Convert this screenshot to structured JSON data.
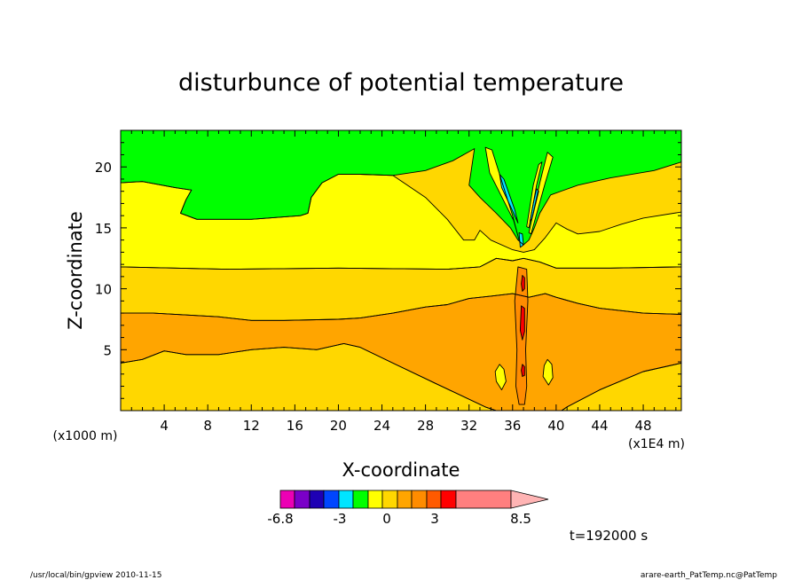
{
  "footer": {
    "left": "/usr/local/bin/gpview   2010-11-15",
    "right": "arare-earth_PatTemp.nc@PatTemp"
  },
  "time_label": "t=192000 s",
  "palette": {
    "green": "#00ff00",
    "yellow": "#ffff00",
    "gold": "#ffd700",
    "orange": "#ffa500",
    "dark_orange": "#ff8c00",
    "red": "#ff0000",
    "salmon": "#ff7f7f",
    "cyan": "#00e5ff",
    "blue": "#0000ff"
  },
  "chart_data": {
    "type": "contour",
    "title": "disturbunce of potential temperature",
    "xlabel": "X-coordinate",
    "ylabel": "Z-coordinate",
    "x_unit_label": "(x1E4 m)",
    "y_unit_label": "(x1000 m)",
    "xlim": [
      0,
      51.5
    ],
    "ylim": [
      0,
      23
    ],
    "x_ticks": [
      4,
      8,
      12,
      16,
      20,
      24,
      28,
      32,
      36,
      40,
      44,
      48
    ],
    "y_ticks": [
      5,
      10,
      15,
      20
    ],
    "bands": [
      {
        "level": "0 to 1",
        "color": "#00ff00",
        "points": [
          [
            0,
            23
          ],
          [
            51.5,
            23
          ],
          [
            51.5,
            20.4
          ],
          [
            49,
            19.7
          ],
          [
            45,
            19.1
          ],
          [
            42,
            18.5
          ],
          [
            39.5,
            17.7
          ],
          [
            38.5,
            16.2
          ],
          [
            38,
            15
          ],
          [
            37.5,
            14
          ],
          [
            37,
            13.6
          ],
          [
            36.5,
            14
          ],
          [
            35.8,
            15
          ],
          [
            34.5,
            16.2
          ],
          [
            33,
            17.5
          ],
          [
            32,
            18.5
          ],
          [
            32.5,
            21.5
          ],
          [
            30.5,
            20.5
          ],
          [
            28,
            19.7
          ],
          [
            25,
            19.3
          ],
          [
            22,
            19.4
          ],
          [
            20,
            19.4
          ],
          [
            18.5,
            18.7
          ],
          [
            17.5,
            17.5
          ],
          [
            17.2,
            16.2
          ],
          [
            16.5,
            16
          ],
          [
            12,
            15.7
          ],
          [
            7,
            15.7
          ],
          [
            5.5,
            16.2
          ],
          [
            6,
            17.3
          ],
          [
            6.5,
            18.1
          ],
          [
            5,
            18.3
          ],
          [
            2,
            18.8
          ],
          [
            0,
            18.7
          ]
        ]
      },
      {
        "level": "1 to 2",
        "color": "#ffff00",
        "points": [
          [
            0,
            18.7
          ],
          [
            2,
            18.8
          ],
          [
            5,
            18.3
          ],
          [
            6.5,
            18.1
          ],
          [
            6,
            17.3
          ],
          [
            5.5,
            16.2
          ],
          [
            7,
            15.7
          ],
          [
            12,
            15.7
          ],
          [
            16.5,
            16
          ],
          [
            17.2,
            16.2
          ],
          [
            17.5,
            17.5
          ],
          [
            18.5,
            18.7
          ],
          [
            20,
            19.4
          ],
          [
            22,
            19.4
          ],
          [
            25,
            19.3
          ],
          [
            28,
            17.5
          ],
          [
            30,
            15.7
          ],
          [
            31.5,
            14
          ],
          [
            32.5,
            14
          ],
          [
            33,
            14.8
          ],
          [
            34,
            14
          ],
          [
            36,
            13.2
          ],
          [
            37,
            13
          ],
          [
            38,
            13.2
          ],
          [
            39,
            14.2
          ],
          [
            40,
            15.4
          ],
          [
            41,
            14.9
          ],
          [
            42,
            14.5
          ],
          [
            44,
            14.7
          ],
          [
            46,
            15.3
          ],
          [
            48,
            15.8
          ],
          [
            51.5,
            16.3
          ],
          [
            51.5,
            11.8
          ],
          [
            45,
            11.7
          ],
          [
            40,
            11.7
          ],
          [
            38.5,
            12.2
          ],
          [
            37,
            12.5
          ],
          [
            36,
            12.3
          ],
          [
            34.5,
            12.5
          ],
          [
            33,
            11.8
          ],
          [
            30,
            11.6
          ],
          [
            20,
            11.7
          ],
          [
            10,
            11.6
          ],
          [
            0,
            11.8
          ]
        ]
      },
      {
        "level": "2 to 3",
        "color": "#ffd700",
        "points": [
          [
            0,
            11.8
          ],
          [
            10,
            11.6
          ],
          [
            20,
            11.7
          ],
          [
            30,
            11.6
          ],
          [
            33,
            11.8
          ],
          [
            34.5,
            12.5
          ],
          [
            36,
            12.3
          ],
          [
            37,
            12.5
          ],
          [
            38.5,
            12.2
          ],
          [
            40,
            11.7
          ],
          [
            45,
            11.7
          ],
          [
            51.5,
            11.8
          ],
          [
            51.5,
            7.9
          ],
          [
            48,
            8
          ],
          [
            44,
            8.4
          ],
          [
            42,
            8.8
          ],
          [
            40,
            9.3
          ],
          [
            39,
            9.6
          ],
          [
            37.5,
            9.3
          ],
          [
            36,
            9.6
          ],
          [
            34,
            9.4
          ],
          [
            32,
            9.2
          ],
          [
            30,
            8.7
          ],
          [
            28,
            8.5
          ],
          [
            25,
            8
          ],
          [
            22,
            7.6
          ],
          [
            20,
            7.5
          ],
          [
            15,
            7.4
          ],
          [
            12,
            7.4
          ],
          [
            9,
            7.7
          ],
          [
            7,
            7.8
          ],
          [
            3,
            8
          ],
          [
            0,
            8
          ]
        ]
      },
      {
        "level": "3 to 4",
        "color": "#ffa500",
        "points": [
          [
            0,
            8
          ],
          [
            3,
            8
          ],
          [
            7,
            7.8
          ],
          [
            9,
            7.7
          ],
          [
            12,
            7.4
          ],
          [
            15,
            7.4
          ],
          [
            20,
            7.5
          ],
          [
            22,
            7.6
          ],
          [
            25,
            8
          ],
          [
            28,
            8.5
          ],
          [
            30,
            8.7
          ],
          [
            32,
            9.2
          ],
          [
            34,
            9.4
          ],
          [
            36,
            9.6
          ],
          [
            37.5,
            9.3
          ],
          [
            39,
            9.6
          ],
          [
            40,
            9.3
          ],
          [
            42,
            8.8
          ],
          [
            44,
            8.4
          ],
          [
            48,
            8
          ],
          [
            51.5,
            7.9
          ],
          [
            51.5,
            3.9
          ],
          [
            48,
            3.2
          ],
          [
            44,
            1.7
          ],
          [
            41,
            0.3
          ],
          [
            40.5,
            0
          ],
          [
            34.5,
            0
          ],
          [
            33.5,
            0.3
          ],
          [
            29,
            2.2
          ],
          [
            25,
            3.9
          ],
          [
            22,
            5.2
          ],
          [
            20.5,
            5.5
          ],
          [
            18,
            5
          ],
          [
            15,
            5.2
          ],
          [
            12,
            5
          ],
          [
            9,
            4.6
          ],
          [
            6,
            4.6
          ],
          [
            4,
            4.9
          ],
          [
            2,
            4.2
          ],
          [
            0,
            3.9
          ]
        ]
      },
      {
        "level": "2 to 3",
        "color": "#ffd700",
        "points": [
          [
            0,
            3.9
          ],
          [
            2,
            4.2
          ],
          [
            4,
            4.9
          ],
          [
            6,
            4.6
          ],
          [
            9,
            4.6
          ],
          [
            12,
            5
          ],
          [
            15,
            5.2
          ],
          [
            18,
            5
          ],
          [
            20.5,
            5.5
          ],
          [
            22,
            5.2
          ],
          [
            25,
            3.9
          ],
          [
            29,
            2.2
          ],
          [
            33.5,
            0.3
          ],
          [
            34.5,
            0
          ],
          [
            0,
            0
          ]
        ]
      },
      {
        "level": "2 to 3",
        "color": "#ffd700",
        "points": [
          [
            40.5,
            0
          ],
          [
            41,
            0.3
          ],
          [
            44,
            1.7
          ],
          [
            48,
            3.2
          ],
          [
            51.5,
            3.9
          ],
          [
            51.5,
            0
          ]
        ]
      },
      {
        "level": "1 to 2",
        "color": "#ffff00",
        "points": [
          [
            33.5,
            21.6
          ],
          [
            34.1,
            21.4
          ],
          [
            36,
            16
          ],
          [
            36.6,
            14
          ],
          [
            36.1,
            15.6
          ],
          [
            33.9,
            19.5
          ]
        ]
      },
      {
        "level": "1 to 2",
        "color": "#ffff00",
        "points": [
          [
            39.2,
            21.2
          ],
          [
            39.7,
            20.8
          ],
          [
            39,
            18.7
          ],
          [
            37.7,
            14.5
          ],
          [
            37.5,
            14.6
          ],
          [
            38.5,
            18.7
          ]
        ]
      },
      {
        "level": "1 to 2",
        "color": "#ffff00",
        "points": [
          [
            38.4,
            20.2
          ],
          [
            38.7,
            20.4
          ],
          [
            38.2,
            18.5
          ],
          [
            37.5,
            15
          ],
          [
            37.3,
            15.1
          ],
          [
            37.9,
            18.5
          ]
        ]
      },
      {
        "level": "-1 to 0",
        "color": "#00e5ff",
        "points": [
          [
            34.8,
            19.4
          ],
          [
            35.2,
            19
          ],
          [
            36.2,
            16.5
          ],
          [
            36.5,
            15.4
          ],
          [
            36.1,
            16.2
          ],
          [
            35,
            18.3
          ]
        ]
      },
      {
        "level": "-1 to 0",
        "color": "#00e5ff",
        "points": [
          [
            38.2,
            18.2
          ],
          [
            38.4,
            18
          ],
          [
            37.8,
            15.8
          ],
          [
            37.6,
            15.5
          ],
          [
            37.9,
            17
          ]
        ]
      },
      {
        "level": "-1 to 0",
        "color": "#00e5ff",
        "points": [
          [
            36.6,
            14.6
          ],
          [
            36.9,
            14.5
          ],
          [
            37,
            13.6
          ],
          [
            36.7,
            13.4
          ]
        ]
      },
      {
        "level": "1 to 2",
        "color": "#ffff00",
        "points": [
          [
            34.8,
            3.8
          ],
          [
            35.2,
            3.4
          ],
          [
            35.4,
            2.4
          ],
          [
            35,
            1.7
          ],
          [
            34.5,
            2.4
          ],
          [
            34.4,
            3.2
          ]
        ]
      },
      {
        "level": "1 to 2",
        "color": "#ffff00",
        "points": [
          [
            39.2,
            4.2
          ],
          [
            39.6,
            3.8
          ],
          [
            39.7,
            2.7
          ],
          [
            39.3,
            2.1
          ],
          [
            38.8,
            2.8
          ],
          [
            38.9,
            3.7
          ]
        ]
      },
      {
        "level": "4 to 5",
        "color": "#ff8c00",
        "points": [
          [
            36.5,
            11.8
          ],
          [
            37.3,
            11.6
          ],
          [
            37.4,
            9
          ],
          [
            37.2,
            5
          ],
          [
            37.3,
            2
          ],
          [
            37.1,
            0.5
          ],
          [
            36.6,
            0.5
          ],
          [
            36.3,
            2
          ],
          [
            36.4,
            5
          ],
          [
            36.2,
            9
          ]
        ]
      },
      {
        "level": "5 to 6",
        "color": "#ff0000",
        "points": [
          [
            36.8,
            8.6
          ],
          [
            37.1,
            8.4
          ],
          [
            37.1,
            6.5
          ],
          [
            36.9,
            5.8
          ],
          [
            36.7,
            6.6
          ]
        ]
      },
      {
        "level": "5 to 6",
        "color": "#ff0000",
        "points": [
          [
            36.9,
            11.1
          ],
          [
            37.1,
            10.9
          ],
          [
            37.1,
            10
          ],
          [
            36.9,
            9.8
          ],
          [
            36.8,
            10.4
          ]
        ]
      },
      {
        "level": "5 to 6",
        "color": "#ff0000",
        "points": [
          [
            36.9,
            3.8
          ],
          [
            37.1,
            3.6
          ],
          [
            37.1,
            2.9
          ],
          [
            36.9,
            2.8
          ],
          [
            36.8,
            3.3
          ]
        ]
      }
    ],
    "colorbar": {
      "colors": [
        "#ec00b4",
        "#7a00c8",
        "#1e00b4",
        "#0046ff",
        "#00e5ff",
        "#00ff00",
        "#ffff00",
        "#ffd700",
        "#ffa500",
        "#ff8c00",
        "#ff5a00",
        "#ff0000",
        "#ff7f7f",
        "#ffb4b4"
      ],
      "labels": [
        "-6.8",
        "-3",
        "0",
        "3",
        "8.5"
      ]
    }
  }
}
